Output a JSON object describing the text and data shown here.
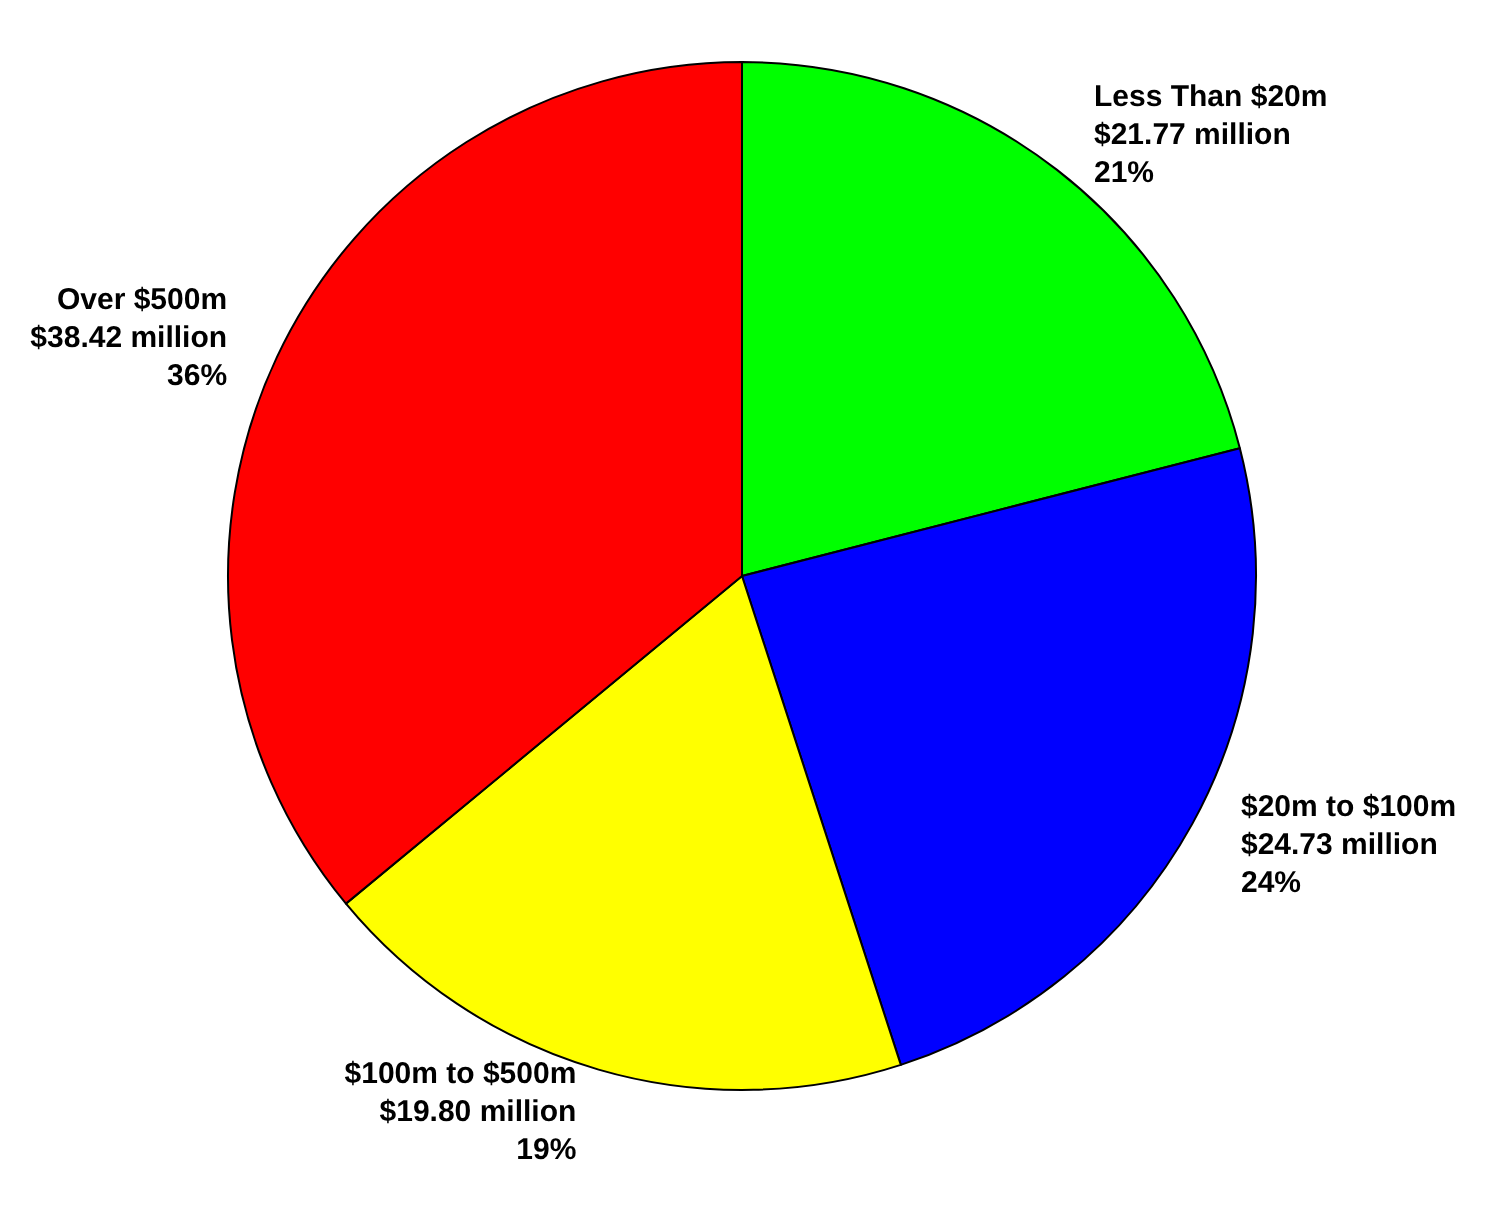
{
  "chart_data": {
    "type": "pie",
    "categories": [
      "Less Than $20m",
      "$20m to $100m",
      "$100m to $500m",
      "Over $500m"
    ],
    "values": [
      21,
      24,
      19,
      36
    ],
    "colors": [
      "#00ff00",
      "#0000ff",
      "#ffff00",
      "#ff0000"
    ],
    "value_labels": [
      "$21.77 million\n21%",
      "$24.73 million\n24%",
      "$19.80 million\n19%",
      "$38.42 million\n36%"
    ],
    "legend": false
  }
}
